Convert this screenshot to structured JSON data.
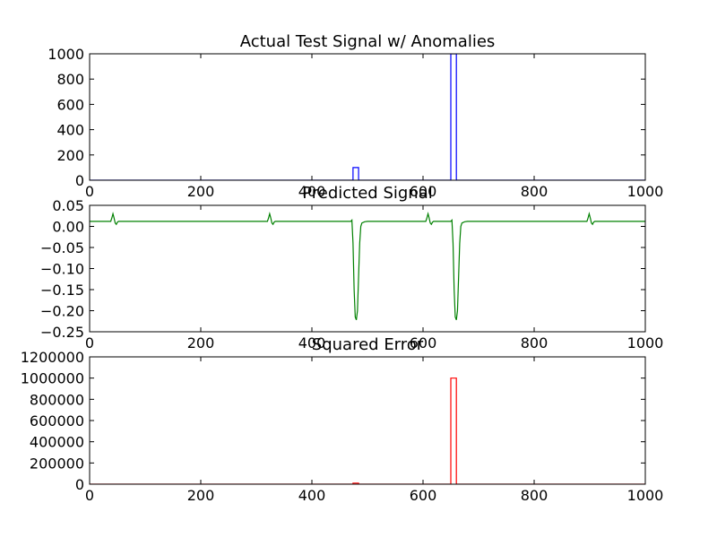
{
  "chart_data": [
    {
      "type": "line",
      "title": "Actual Test Signal w/ Anomalies",
      "xlim": [
        0,
        1000
      ],
      "ylim": [
        0,
        1000
      ],
      "x_ticks": [
        0,
        200,
        400,
        600,
        800,
        1000
      ],
      "y_ticks": [
        0,
        200,
        400,
        600,
        800,
        1000
      ],
      "x_tick_labels": [
        "0",
        "200",
        "400",
        "600",
        "800",
        "1000"
      ],
      "y_tick_labels": [
        "0",
        "200",
        "400",
        "600",
        "800",
        "1000"
      ],
      "series": [
        {
          "color": "#0000ff",
          "x": [
            0,
            474,
            474,
            484,
            484,
            650,
            650,
            660,
            660,
            1000
          ],
          "y": [
            0,
            0,
            100,
            100,
            0,
            0,
            1000,
            1000,
            0,
            0
          ]
        }
      ]
    },
    {
      "type": "line",
      "title": "Predicted Signal",
      "xlim": [
        0,
        1000
      ],
      "ylim": [
        -0.25,
        0.05
      ],
      "x_ticks": [
        0,
        200,
        400,
        600,
        800,
        1000
      ],
      "y_ticks": [
        0.05,
        0.0,
        -0.05,
        -0.1,
        -0.15,
        -0.2,
        -0.25
      ],
      "x_tick_labels": [
        "0",
        "200",
        "400",
        "600",
        "800",
        "1000"
      ],
      "y_tick_labels": [
        "0.05",
        "0.00",
        "−0.05",
        "−0.10",
        "−0.15",
        "−0.20",
        "−0.25"
      ],
      "series": [
        {
          "color": "#008000",
          "x": [
            0,
            38,
            40,
            42,
            44,
            46,
            48,
            50,
            52,
            320,
            322,
            324,
            326,
            328,
            330,
            332,
            334,
            470,
            472,
            474,
            476,
            478,
            480,
            482,
            484,
            486,
            488,
            490,
            495,
            500,
            605,
            607,
            609,
            611,
            613,
            615,
            617,
            619,
            650,
            652,
            654,
            656,
            658,
            660,
            662,
            664,
            666,
            668,
            670,
            675,
            680,
            895,
            897,
            899,
            901,
            903,
            905,
            907,
            909,
            1000
          ],
          "y": [
            0.012,
            0.012,
            0.02,
            0.03,
            0.02,
            0.008,
            0.005,
            0.01,
            0.012,
            0.012,
            0.02,
            0.03,
            0.02,
            0.008,
            0.005,
            0.01,
            0.012,
            0.012,
            0.015,
            -0.04,
            -0.15,
            -0.215,
            -0.222,
            -0.2,
            -0.12,
            -0.04,
            0.0,
            0.008,
            0.011,
            0.012,
            0.012,
            0.02,
            0.03,
            0.02,
            0.008,
            0.005,
            0.01,
            0.012,
            0.012,
            0.015,
            -0.04,
            -0.15,
            -0.215,
            -0.222,
            -0.2,
            -0.12,
            -0.04,
            0.0,
            0.008,
            0.011,
            0.012,
            0.012,
            0.02,
            0.03,
            0.02,
            0.008,
            0.005,
            0.01,
            0.012,
            0.012
          ]
        }
      ]
    },
    {
      "type": "line",
      "title": "Squared Error",
      "xlim": [
        0,
        1000
      ],
      "ylim": [
        0,
        1200000
      ],
      "x_ticks": [
        0,
        200,
        400,
        600,
        800,
        1000
      ],
      "y_ticks": [
        0,
        200000,
        400000,
        600000,
        800000,
        1000000,
        1200000
      ],
      "x_tick_labels": [
        "0",
        "200",
        "400",
        "600",
        "800",
        "1000"
      ],
      "y_tick_labels": [
        "0",
        "200000",
        "400000",
        "600000",
        "800000",
        "1000000",
        "1200000"
      ],
      "series": [
        {
          "color": "#ff0000",
          "x": [
            0,
            474,
            474,
            484,
            484,
            650,
            650,
            660,
            660,
            1000
          ],
          "y": [
            0,
            0,
            10000,
            10000,
            0,
            0,
            1000000,
            1000000,
            0,
            0
          ]
        }
      ]
    }
  ]
}
